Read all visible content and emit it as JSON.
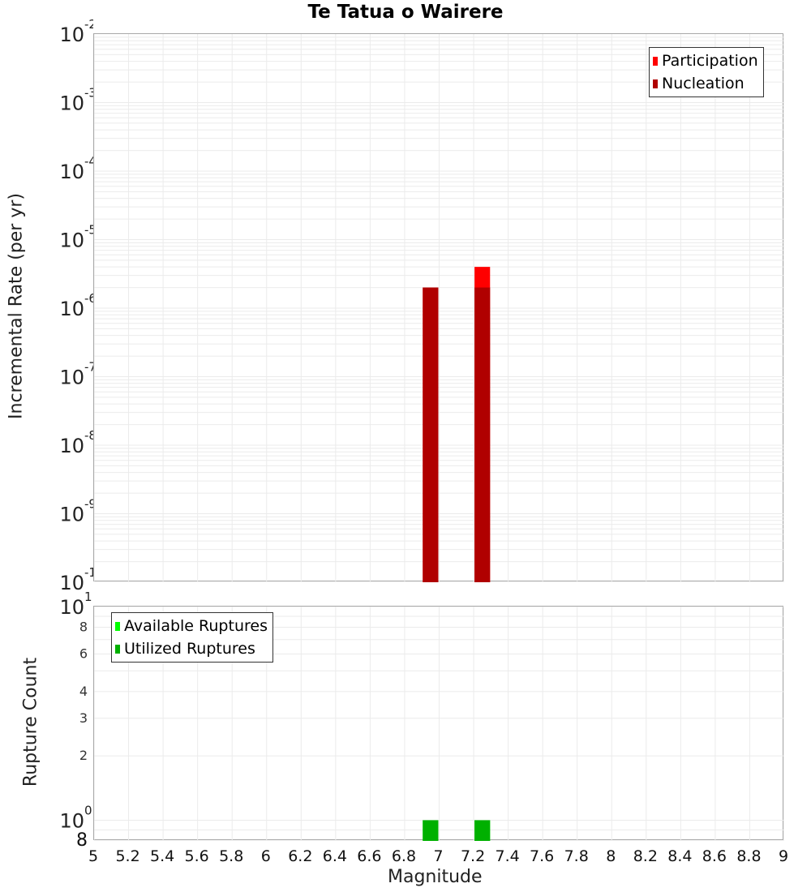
{
  "title": "Te Tatua o Wairere",
  "chart_data": [
    {
      "type": "bar",
      "title": "Te Tatua o Wairere",
      "xlabel": "Magnitude",
      "ylabel": "Incremental Rate (per yr)",
      "yscale": "log",
      "ylim": [
        1e-10,
        0.01
      ],
      "xlim": [
        5,
        9
      ],
      "grid": true,
      "legend_position": "top-right",
      "ytick_labels": [
        "10^-2",
        "10^-3",
        "10^-4",
        "10^-5",
        "10^-6",
        "10^-7",
        "10^-8",
        "10^-9",
        "10^-10"
      ],
      "bar_width": 0.09,
      "series": [
        {
          "name": "Participation",
          "color": "#ff0000",
          "x": [
            6.95,
            7.25
          ],
          "values": [
            2e-06,
            4e-06
          ]
        },
        {
          "name": "Nucleation",
          "color": "#b00000",
          "x": [
            6.95,
            7.25
          ],
          "values": [
            2e-06,
            2e-06
          ]
        }
      ]
    },
    {
      "type": "bar",
      "xlabel": "Magnitude",
      "ylabel": "Rupture Count",
      "yscale": "log",
      "ylim": [
        0.8,
        10
      ],
      "xlim": [
        5,
        9
      ],
      "grid": true,
      "legend_position": "top-left",
      "ytick_labels": [
        "10^1",
        "8",
        "6",
        "4",
        "3",
        "2",
        "10^0",
        "8"
      ],
      "bar_width": 0.09,
      "series": [
        {
          "name": "Available Ruptures",
          "color": "#00ff00",
          "x": [
            6.95,
            7.25
          ],
          "values": [
            1,
            1
          ]
        },
        {
          "name": "Utilized Ruptures",
          "color": "#00b000",
          "x": [
            6.95,
            7.25
          ],
          "values": [
            1,
            1
          ]
        }
      ]
    }
  ],
  "xticks": [
    "5",
    "5.2",
    "5.4",
    "5.6",
    "5.8",
    "6",
    "6.2",
    "6.4",
    "6.6",
    "6.8",
    "7",
    "7.2",
    "7.4",
    "7.6",
    "7.8",
    "8",
    "8.2",
    "8.4",
    "8.6",
    "8.8",
    "9"
  ],
  "top": {
    "ylabel": "Incremental Rate (per yr)",
    "legend": [
      {
        "label": "Participation",
        "color": "#ff0000"
      },
      {
        "label": "Nucleation",
        "color": "#b00000"
      }
    ]
  },
  "bottom": {
    "ylabel": "Rupture Count",
    "xlabel": "Magnitude",
    "legend": [
      {
        "label": "Available Ruptures",
        "color": "#00ff00"
      },
      {
        "label": "Utilized Ruptures",
        "color": "#00b000"
      }
    ]
  }
}
